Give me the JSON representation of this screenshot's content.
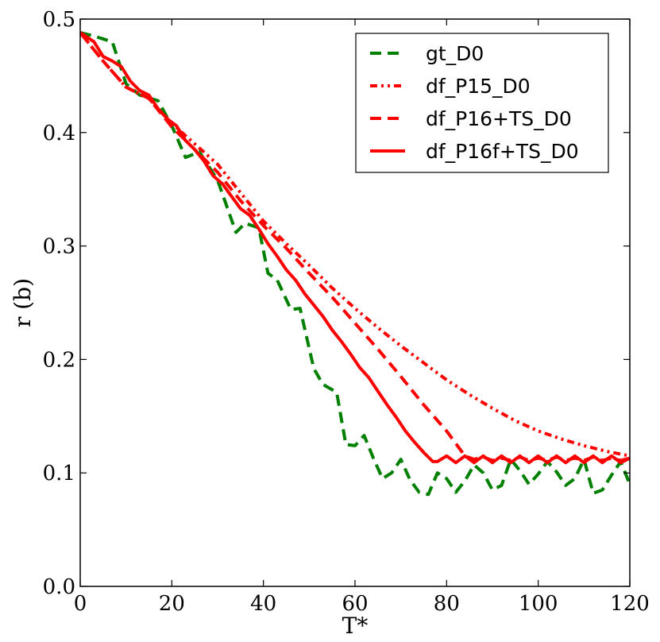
{
  "chart_data": {
    "type": "line",
    "title": "",
    "xlabel": "T*",
    "ylabel": "r (b)",
    "xlim": [
      0,
      120
    ],
    "ylim": [
      0.0,
      0.5
    ],
    "x_ticks": [
      0,
      20,
      40,
      60,
      80,
      100,
      120
    ],
    "y_ticks": [
      0.0,
      0.1,
      0.2,
      0.3,
      0.4,
      0.5
    ],
    "x_tick_labels": [
      "0",
      "20",
      "40",
      "60",
      "80",
      "100",
      "120"
    ],
    "y_tick_labels": [
      "0.0",
      "0.1",
      "0.2",
      "0.3",
      "0.4",
      "0.5"
    ],
    "legend_position": "top-right",
    "grid": false,
    "series": [
      {
        "name": "gt_D0",
        "color": "#008000",
        "style": "dashed",
        "x": [
          0,
          3,
          7,
          10,
          13,
          17,
          20,
          23,
          26,
          30,
          34,
          36,
          39,
          41,
          43,
          46,
          48,
          51,
          53,
          56,
          58,
          60,
          62,
          64,
          66,
          68,
          70,
          72,
          74,
          76,
          78,
          80,
          82,
          84,
          86,
          88,
          90,
          92,
          94,
          96,
          98,
          100,
          102,
          104,
          106,
          108,
          110,
          112,
          114,
          116,
          118,
          120
        ],
        "y": [
          0.488,
          0.485,
          0.48,
          0.443,
          0.433,
          0.428,
          0.406,
          0.378,
          0.383,
          0.358,
          0.312,
          0.32,
          0.316,
          0.276,
          0.27,
          0.244,
          0.245,
          0.192,
          0.178,
          0.171,
          0.125,
          0.124,
          0.133,
          0.113,
          0.095,
          0.1,
          0.112,
          0.094,
          0.083,
          0.081,
          0.1,
          0.095,
          0.083,
          0.093,
          0.107,
          0.1,
          0.085,
          0.089,
          0.112,
          0.102,
          0.09,
          0.099,
          0.11,
          0.101,
          0.089,
          0.095,
          0.112,
          0.082,
          0.085,
          0.098,
          0.11,
          0.09
        ]
      },
      {
        "name": "df_P15_D0",
        "color": "#ff0000",
        "style": "dashdot",
        "x": [
          0,
          5,
          10,
          15,
          20,
          25,
          30,
          35,
          40,
          45,
          50,
          55,
          60,
          65,
          70,
          75,
          80,
          85,
          90,
          95,
          100,
          105,
          110,
          115,
          120
        ],
        "y": [
          0.488,
          0.463,
          0.44,
          0.43,
          0.408,
          0.39,
          0.372,
          0.347,
          0.322,
          0.302,
          0.283,
          0.263,
          0.245,
          0.228,
          0.212,
          0.197,
          0.182,
          0.169,
          0.157,
          0.146,
          0.137,
          0.13,
          0.124,
          0.119,
          0.115
        ]
      },
      {
        "name": "df_P16+TS_D0",
        "color": "#ff0000",
        "style": "dashed",
        "x": [
          0,
          5,
          10,
          15,
          20,
          25,
          30,
          35,
          40,
          45,
          50,
          55,
          60,
          65,
          70,
          75,
          80,
          84,
          86,
          88,
          90,
          92,
          94,
          96,
          98,
          100,
          102,
          104,
          106,
          108,
          110,
          112,
          114,
          116,
          118,
          120
        ],
        "y": [
          0.488,
          0.463,
          0.44,
          0.43,
          0.405,
          0.385,
          0.365,
          0.34,
          0.318,
          0.298,
          0.276,
          0.255,
          0.232,
          0.209,
          0.185,
          0.16,
          0.137,
          0.115,
          0.112,
          0.114,
          0.111,
          0.113,
          0.111,
          0.114,
          0.111,
          0.113,
          0.111,
          0.114,
          0.111,
          0.113,
          0.111,
          0.114,
          0.111,
          0.113,
          0.111,
          0.113
        ]
      },
      {
        "name": "df_P16f+TS_D0",
        "color": "#ff0000",
        "style": "solid",
        "x": [
          0,
          3,
          5,
          7,
          9,
          11,
          13,
          15,
          17,
          19,
          21,
          23,
          25,
          27,
          29,
          31,
          33,
          35,
          37,
          39,
          41,
          43,
          45,
          47,
          49,
          51,
          53,
          55,
          57,
          59,
          61,
          63,
          65,
          67,
          69,
          71,
          73,
          75,
          77,
          78,
          80,
          82,
          84,
          86,
          88,
          90,
          92,
          94,
          96,
          98,
          100,
          102,
          104,
          106,
          108,
          110,
          112,
          114,
          116,
          118,
          120
        ],
        "y": [
          0.488,
          0.48,
          0.467,
          0.463,
          0.458,
          0.445,
          0.437,
          0.433,
          0.421,
          0.412,
          0.406,
          0.393,
          0.385,
          0.375,
          0.362,
          0.355,
          0.344,
          0.333,
          0.327,
          0.315,
          0.302,
          0.291,
          0.279,
          0.27,
          0.258,
          0.248,
          0.238,
          0.226,
          0.216,
          0.205,
          0.193,
          0.184,
          0.172,
          0.16,
          0.149,
          0.137,
          0.127,
          0.118,
          0.11,
          0.11,
          0.115,
          0.109,
          0.115,
          0.109,
          0.115,
          0.109,
          0.115,
          0.109,
          0.115,
          0.109,
          0.115,
          0.109,
          0.115,
          0.109,
          0.115,
          0.109,
          0.115,
          0.109,
          0.115,
          0.109,
          0.113
        ]
      }
    ]
  }
}
